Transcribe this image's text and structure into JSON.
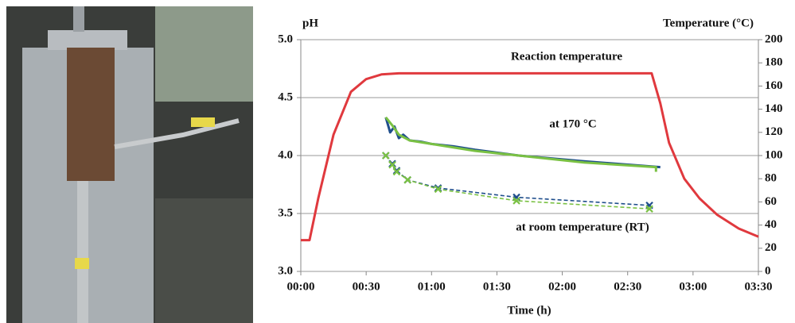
{
  "chart_data": {
    "type": "line",
    "xlabel": "Time (h)",
    "ylabel": "pH",
    "y2label": "Temperature (°C)",
    "annotations": [
      "Reaction temperature",
      "at 170 °C",
      "at room temperature (RT)"
    ],
    "xlim": [
      0,
      210
    ],
    "xticks": [
      {
        "value": 0,
        "label": "00:00"
      },
      {
        "value": 30,
        "label": "00:30"
      },
      {
        "value": 60,
        "label": "01:00"
      },
      {
        "value": 90,
        "label": "01:30"
      },
      {
        "value": 120,
        "label": "02:00"
      },
      {
        "value": 150,
        "label": "02:30"
      },
      {
        "value": 180,
        "label": "03:00"
      },
      {
        "value": 210,
        "label": "03:30"
      }
    ],
    "ylim": [
      3,
      5
    ],
    "yticks": [
      {
        "value": 3,
        "label": "3.0"
      },
      {
        "value": 3.5,
        "label": "3.5"
      },
      {
        "value": 4,
        "label": "4.0"
      },
      {
        "value": 4.5,
        "label": "4.5"
      },
      {
        "value": 5,
        "label": "5.0"
      }
    ],
    "y2lim": [
      0,
      200
    ],
    "y2ticks": [
      0,
      20,
      40,
      60,
      80,
      100,
      120,
      140,
      160,
      180,
      200
    ],
    "grid": true,
    "series": [
      {
        "color": "#e0393e",
        "axis": "y2",
        "style": "solid",
        "x": [
          0,
          4,
          8,
          15,
          23,
          30,
          37,
          45,
          100,
          161,
          165,
          169,
          176,
          183,
          191,
          201,
          210
        ],
        "values": [
          27,
          27,
          63,
          118,
          155,
          166,
          170,
          171,
          171,
          171,
          145,
          111,
          80,
          63,
          49,
          37,
          30
        ]
      },
      {
        "color": "#1f4e8c",
        "style": "solid",
        "x": [
          39,
          41,
          43,
          45,
          47,
          50,
          55,
          60,
          70,
          80,
          100,
          130,
          165
        ],
        "values": [
          4.33,
          4.2,
          4.25,
          4.15,
          4.18,
          4.13,
          4.12,
          4.1,
          4.08,
          4.05,
          4.0,
          3.95,
          3.9
        ]
      },
      {
        "color": "#7ac143",
        "style": "solid",
        "x": [
          39,
          42,
          45,
          50,
          60,
          80,
          100,
          130,
          163,
          163
        ],
        "values": [
          4.33,
          4.26,
          4.18,
          4.13,
          4.1,
          4.04,
          4.0,
          3.94,
          3.9,
          3.86
        ]
      },
      {
        "color": "#1f4e8c",
        "style": "dashed-marker",
        "x": [
          39,
          42,
          44,
          49,
          63,
          99,
          160
        ],
        "values": [
          4.0,
          3.93,
          3.87,
          3.79,
          3.72,
          3.64,
          3.57
        ]
      },
      {
        "color": "#7ac143",
        "style": "dashed-marker",
        "x": [
          39,
          42,
          44,
          49,
          63,
          99,
          160
        ],
        "values": [
          4.0,
          3.92,
          3.86,
          3.79,
          3.71,
          3.61,
          3.54
        ]
      }
    ]
  }
}
